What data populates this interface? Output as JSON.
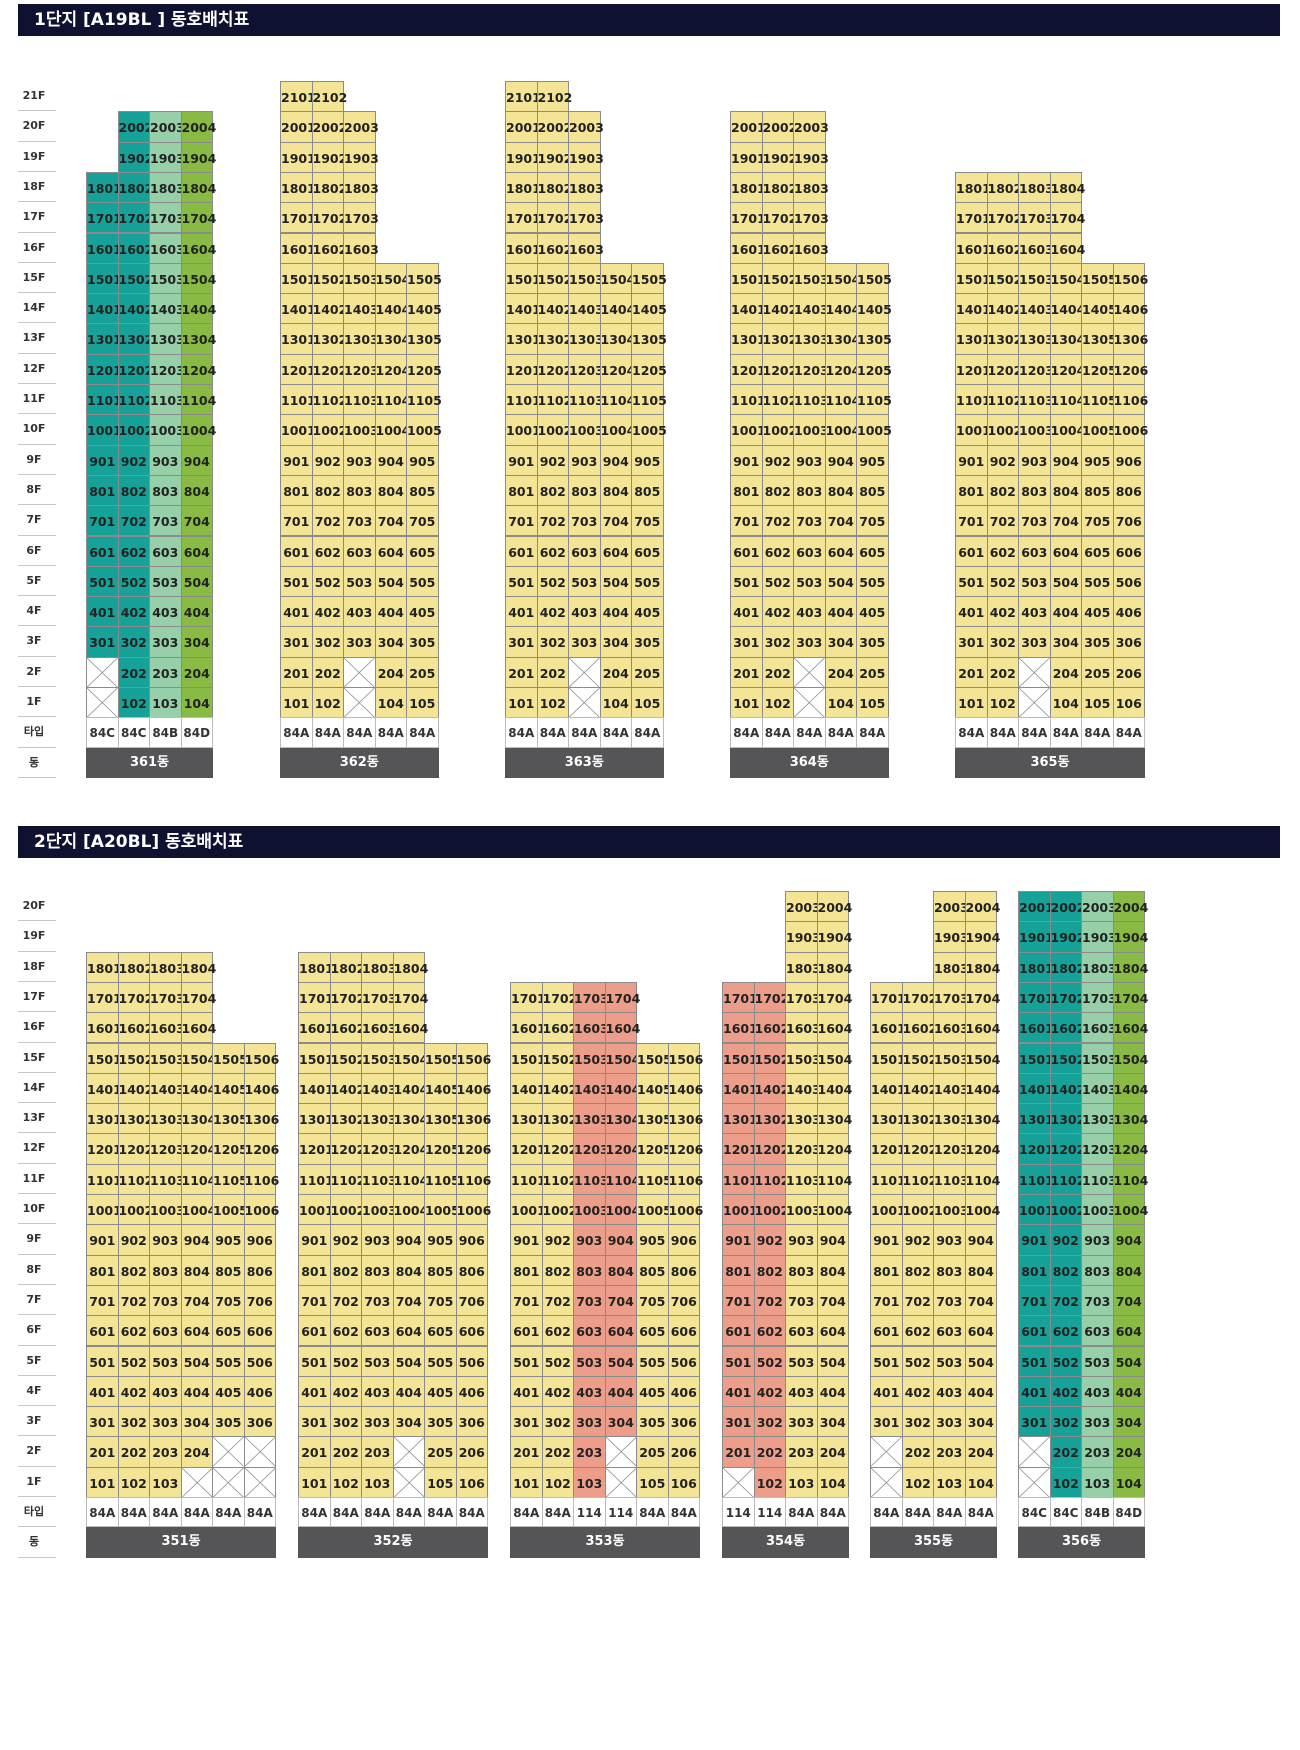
{
  "colors": {
    "yellow": "#f3e496",
    "teal": "#16a199",
    "mint": "#96cfa8",
    "green": "#89bb44",
    "salmon": "#ec9e8a"
  },
  "complexes": [
    {
      "title": "1단지  [A19BL ] 동호배치표",
      "floor_labels": [
        "21F",
        "20F",
        "19F",
        "18F",
        "17F",
        "16F",
        "15F",
        "14F",
        "13F",
        "12F",
        "11F",
        "10F",
        "9F",
        "8F",
        "7F",
        "6F",
        "5F",
        "4F",
        "3F",
        "2F",
        "1F"
      ],
      "type_label": "타입",
      "building_label": "동",
      "buildings": [
        {
          "name": "361동",
          "lines": [
            {
              "type": "84C",
              "top": 18,
              "color": "teal",
              "x_floors": [
                1,
                2
              ]
            },
            {
              "type": "84C",
              "top": 20,
              "color": "teal",
              "x_floors": []
            },
            {
              "type": "84B",
              "top": 20,
              "color": "mint",
              "x_floors": []
            },
            {
              "type": "84D",
              "top": 20,
              "color": "green",
              "x_floors": []
            }
          ]
        },
        {
          "name": "362동",
          "lines": [
            {
              "type": "84A",
              "top": 21,
              "color": "yellow",
              "x_floors": []
            },
            {
              "type": "84A",
              "top": 21,
              "color": "yellow",
              "x_floors": []
            },
            {
              "type": "84A",
              "top": 20,
              "color": "yellow",
              "x_floors": [
                1,
                2
              ]
            },
            {
              "type": "84A",
              "top": 15,
              "color": "yellow",
              "x_floors": []
            },
            {
              "type": "84A",
              "top": 15,
              "color": "yellow",
              "x_floors": []
            }
          ]
        },
        {
          "name": "363동",
          "lines": [
            {
              "type": "84A",
              "top": 21,
              "color": "yellow",
              "x_floors": []
            },
            {
              "type": "84A",
              "top": 21,
              "color": "yellow",
              "x_floors": []
            },
            {
              "type": "84A",
              "top": 20,
              "color": "yellow",
              "x_floors": [
                1,
                2
              ]
            },
            {
              "type": "84A",
              "top": 15,
              "color": "yellow",
              "x_floors": []
            },
            {
              "type": "84A",
              "top": 15,
              "color": "yellow",
              "x_floors": []
            }
          ]
        },
        {
          "name": "364동",
          "lines": [
            {
              "type": "84A",
              "top": 20,
              "color": "yellow",
              "x_floors": []
            },
            {
              "type": "84A",
              "top": 20,
              "color": "yellow",
              "x_floors": []
            },
            {
              "type": "84A",
              "top": 20,
              "color": "yellow",
              "x_floors": [
                1,
                2
              ]
            },
            {
              "type": "84A",
              "top": 15,
              "color": "yellow",
              "x_floors": []
            },
            {
              "type": "84A",
              "top": 15,
              "color": "yellow",
              "x_floors": []
            }
          ]
        },
        {
          "name": "365동",
          "lines": [
            {
              "type": "84A",
              "top": 18,
              "color": "yellow",
              "x_floors": []
            },
            {
              "type": "84A",
              "top": 18,
              "color": "yellow",
              "x_floors": []
            },
            {
              "type": "84A",
              "top": 18,
              "color": "yellow",
              "x_floors": [
                1,
                2
              ]
            },
            {
              "type": "84A",
              "top": 18,
              "color": "yellow",
              "x_floors": []
            },
            {
              "type": "84A",
              "top": 15,
              "color": "yellow",
              "x_floors": []
            },
            {
              "type": "84A",
              "top": 15,
              "color": "yellow",
              "x_floors": []
            }
          ]
        }
      ]
    },
    {
      "title": "2단지 [A20BL] 동호배치표",
      "floor_labels": [
        "20F",
        "19F",
        "18F",
        "17F",
        "16F",
        "15F",
        "14F",
        "13F",
        "12F",
        "11F",
        "10F",
        "9F",
        "8F",
        "7F",
        "6F",
        "5F",
        "4F",
        "3F",
        "2F",
        "1F"
      ],
      "type_label": "타입",
      "building_label": "동",
      "buildings": [
        {
          "name": "351동",
          "lines": [
            {
              "type": "84A",
              "top": 18,
              "color": "yellow",
              "x_floors": []
            },
            {
              "type": "84A",
              "top": 18,
              "color": "yellow",
              "x_floors": []
            },
            {
              "type": "84A",
              "top": 18,
              "color": "yellow",
              "x_floors": []
            },
            {
              "type": "84A",
              "top": 18,
              "color": "yellow",
              "x_floors": [
                1
              ]
            },
            {
              "type": "84A",
              "top": 15,
              "color": "yellow",
              "x_floors": [
                1,
                2
              ]
            },
            {
              "type": "84A",
              "top": 15,
              "color": "yellow",
              "x_floors": [
                1,
                2
              ]
            }
          ]
        },
        {
          "name": "352동",
          "lines": [
            {
              "type": "84A",
              "top": 18,
              "color": "yellow",
              "x_floors": []
            },
            {
              "type": "84A",
              "top": 18,
              "color": "yellow",
              "x_floors": []
            },
            {
              "type": "84A",
              "top": 18,
              "color": "yellow",
              "x_floors": []
            },
            {
              "type": "84A",
              "top": 18,
              "color": "yellow",
              "x_floors": [
                1,
                2
              ]
            },
            {
              "type": "84A",
              "top": 15,
              "color": "yellow",
              "x_floors": []
            },
            {
              "type": "84A",
              "top": 15,
              "color": "yellow",
              "x_floors": []
            }
          ]
        },
        {
          "name": "353동",
          "lines": [
            {
              "type": "84A",
              "top": 17,
              "color": "yellow",
              "x_floors": []
            },
            {
              "type": "84A",
              "top": 17,
              "color": "yellow",
              "x_floors": []
            },
            {
              "type": "114",
              "top": 17,
              "color": "salmon",
              "x_floors": []
            },
            {
              "type": "114",
              "top": 17,
              "color": "salmon",
              "x_floors": [
                1,
                2
              ]
            },
            {
              "type": "84A",
              "top": 15,
              "color": "yellow",
              "x_floors": []
            },
            {
              "type": "84A",
              "top": 15,
              "color": "yellow",
              "x_floors": []
            }
          ]
        },
        {
          "name": "354동",
          "lines": [
            {
              "type": "114",
              "top": 17,
              "color": "salmon",
              "x_floors": [
                1
              ]
            },
            {
              "type": "114",
              "top": 17,
              "color": "salmon",
              "x_floors": []
            },
            {
              "type": "84A",
              "top": 20,
              "color": "yellow",
              "x_floors": []
            },
            {
              "type": "84A",
              "top": 20,
              "color": "yellow",
              "x_floors": []
            }
          ]
        },
        {
          "name": "355동",
          "lines": [
            {
              "type": "84A",
              "top": 17,
              "color": "yellow",
              "x_floors": [
                1,
                2
              ]
            },
            {
              "type": "84A",
              "top": 17,
              "color": "yellow",
              "x_floors": []
            },
            {
              "type": "84A",
              "top": 20,
              "color": "yellow",
              "x_floors": []
            },
            {
              "type": "84A",
              "top": 20,
              "color": "yellow",
              "x_floors": []
            }
          ]
        },
        {
          "name": "356동",
          "lines": [
            {
              "type": "84C",
              "top": 20,
              "color": "teal",
              "x_floors": [
                1,
                2
              ]
            },
            {
              "type": "84C",
              "top": 20,
              "color": "teal",
              "x_floors": []
            },
            {
              "type": "84B",
              "top": 20,
              "color": "mint",
              "x_floors": []
            },
            {
              "type": "84D",
              "top": 20,
              "color": "green",
              "x_floors": []
            }
          ]
        }
      ]
    }
  ]
}
